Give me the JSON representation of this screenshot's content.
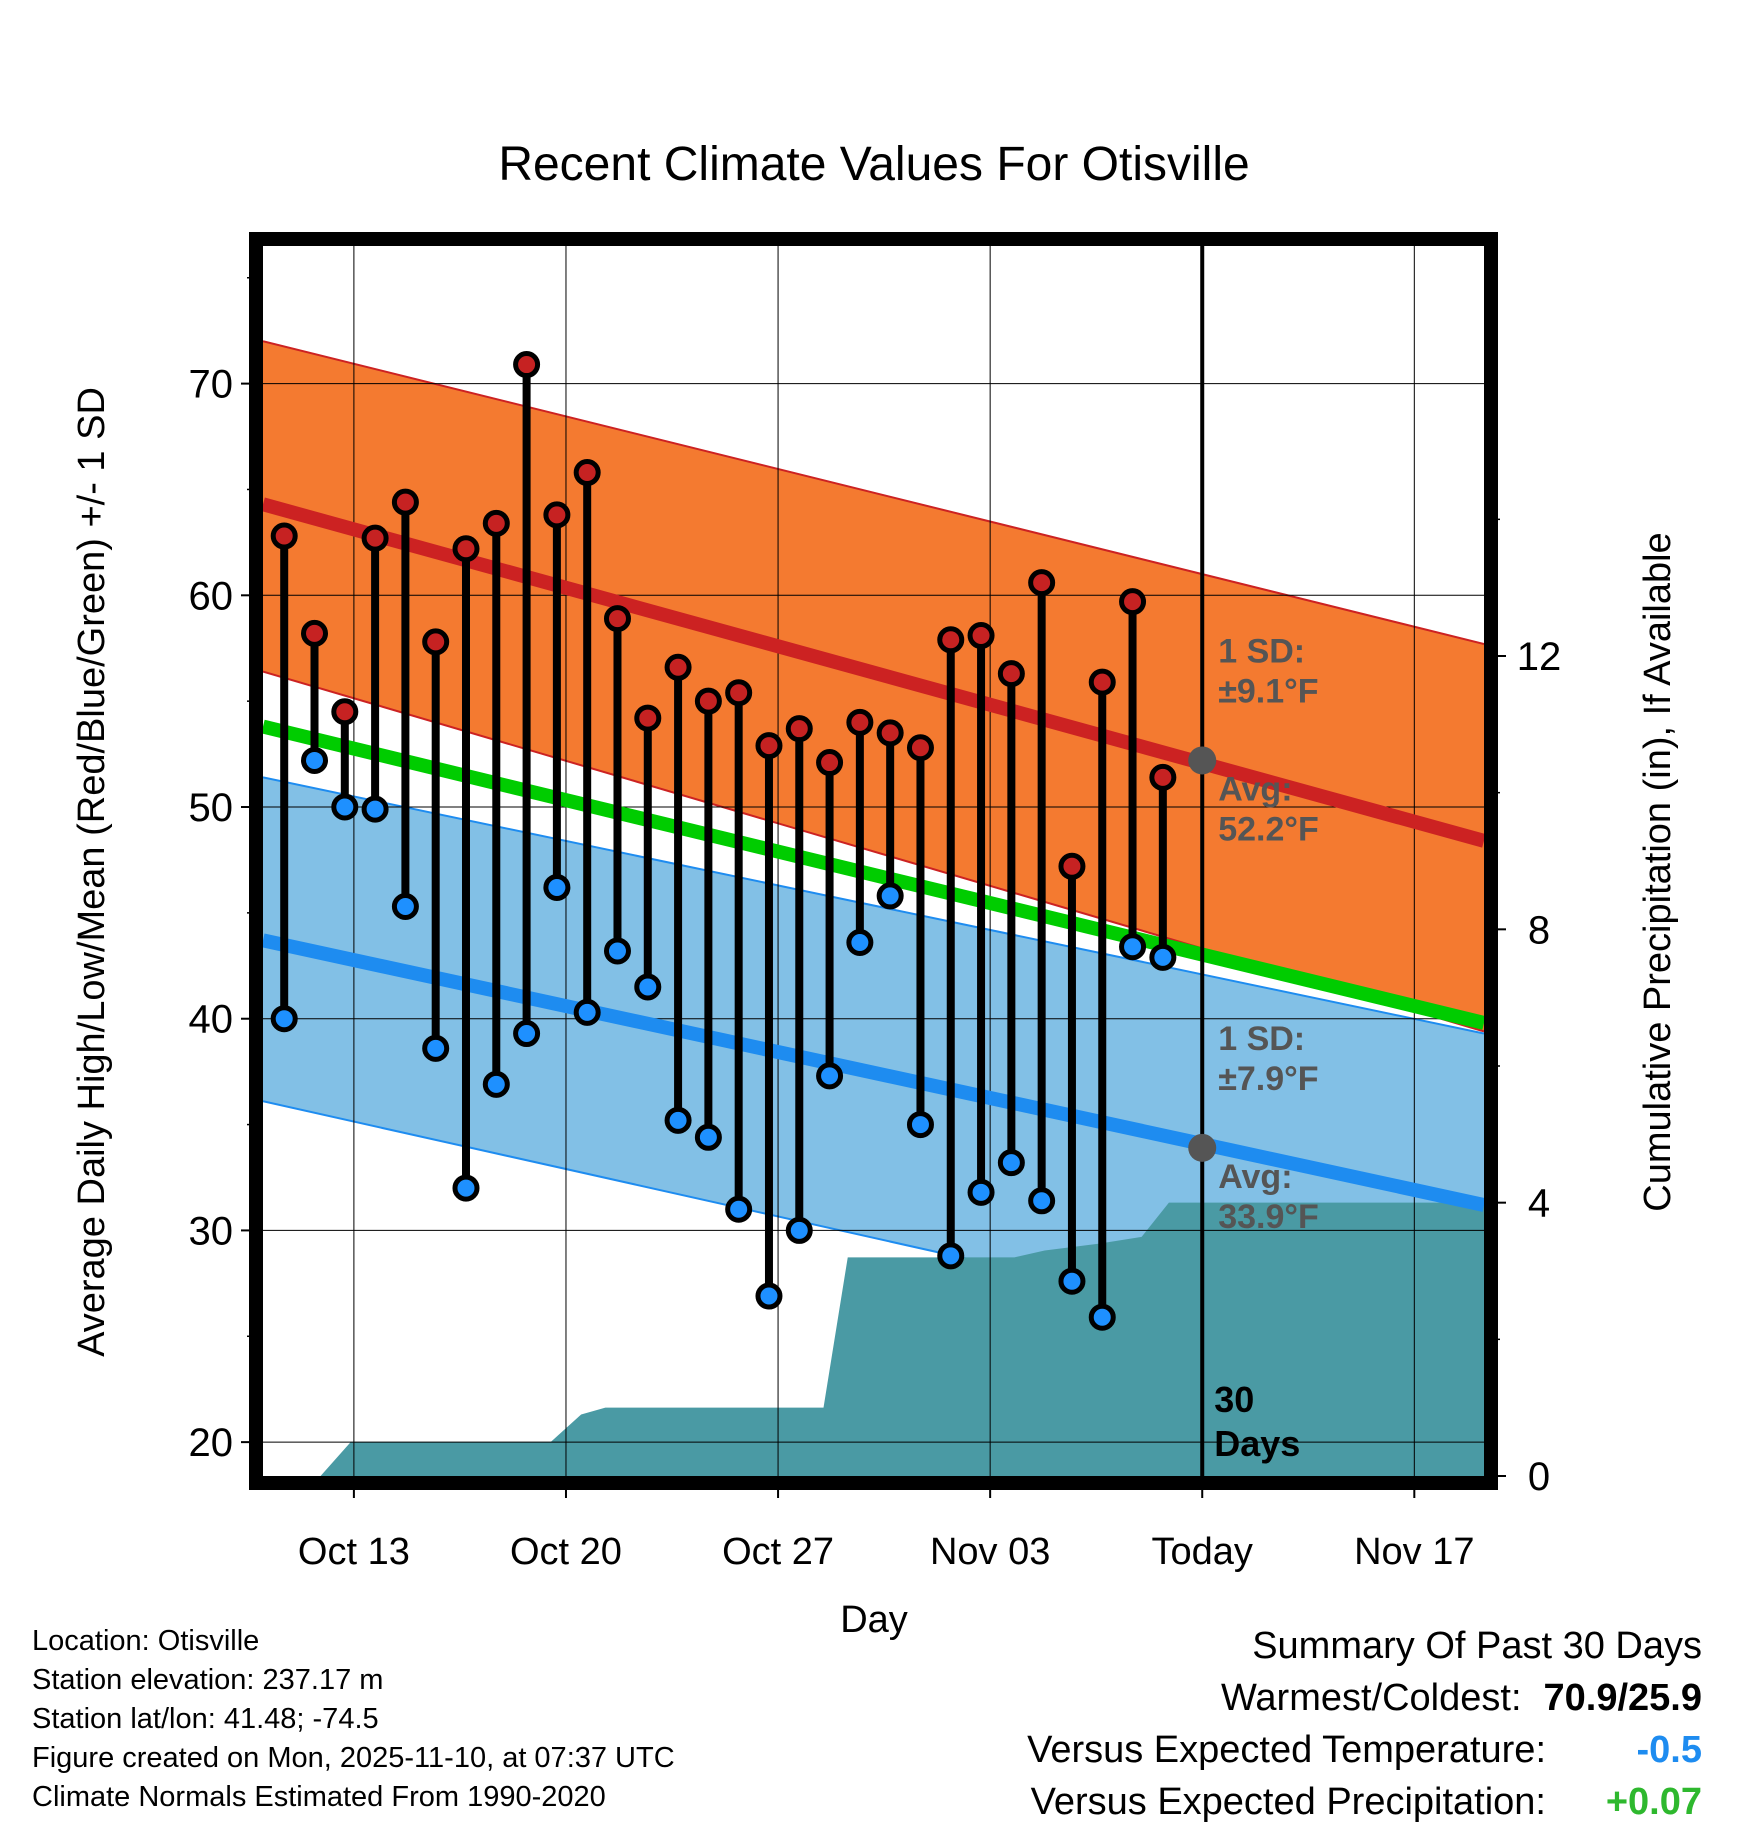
{
  "chart_data": {
    "type": "line",
    "title": "Recent Climate Values For Otisville",
    "xlabel": "Day",
    "ylabel": "Average Daily High/Low/Mean (Red/Blue/Green) +/- 1 SD",
    "y2label": "Cumulative Precipitation (in), If Available",
    "xlim": [
      0,
      40.3
    ],
    "ylim": [
      18.4,
      76.5
    ],
    "y2lim": [
      0,
      18
    ],
    "xticks": [
      {
        "x": 3,
        "label": "Oct 13"
      },
      {
        "x": 10,
        "label": "Oct 20"
      },
      {
        "x": 17,
        "label": "Oct 27"
      },
      {
        "x": 24,
        "label": "Nov 03"
      },
      {
        "x": 31,
        "label": "Today"
      },
      {
        "x": 38,
        "label": "Nov 17"
      }
    ],
    "yticks": [
      20,
      30,
      40,
      50,
      60,
      70
    ],
    "y2ticks": [
      0,
      4,
      8,
      12
    ],
    "today_x": 31,
    "day_x": [
      0.7,
      1.7,
      2.7,
      3.7,
      4.7,
      5.7,
      6.7,
      7.7,
      8.7,
      9.7,
      10.7,
      11.7,
      12.7,
      13.7,
      14.7,
      15.7,
      16.7,
      17.7,
      18.7,
      19.7,
      20.7,
      21.7,
      22.7,
      23.7,
      24.7,
      25.7,
      26.7,
      27.7,
      28.7,
      29.7
    ],
    "highs": [
      62.8,
      58.2,
      54.5,
      62.7,
      64.4,
      57.8,
      62.2,
      63.4,
      70.9,
      63.8,
      65.8,
      58.9,
      54.2,
      56.6,
      55.0,
      55.4,
      52.9,
      53.7,
      52.1,
      54.0,
      53.5,
      52.8,
      57.9,
      58.1,
      56.3,
      60.6,
      47.2,
      55.9,
      59.7,
      51.4
    ],
    "lows": [
      40.0,
      52.2,
      50.0,
      49.9,
      45.3,
      38.6,
      32.0,
      36.9,
      39.3,
      46.2,
      40.3,
      43.2,
      41.5,
      35.2,
      34.4,
      31.0,
      26.9,
      30.0,
      37.3,
      43.6,
      45.8,
      35.0,
      28.8,
      31.8,
      33.2,
      31.4,
      27.6,
      25.9,
      43.4,
      42.9
    ],
    "normal_high_band": {
      "x": [
        0,
        40.3
      ],
      "avg": [
        64.3,
        48.4
      ],
      "upper": [
        72.0,
        57.7
      ],
      "lower": [
        56.4,
        39.4
      ]
    },
    "normal_low_band": {
      "x": [
        0,
        40.3
      ],
      "avg": [
        43.7,
        31.2
      ],
      "upper": [
        51.4,
        39.3
      ],
      "lower": [
        36.1,
        23.2
      ]
    },
    "normal_mean": {
      "x": [
        0,
        40.3
      ],
      "values": [
        53.8,
        39.8
      ]
    },
    "precip_cumulative": {
      "x": [
        0,
        1.9,
        2.9,
        9.5,
        10.5,
        11.3,
        18.5,
        19.3,
        24.8,
        25.8,
        27.6,
        29.0,
        29.9,
        40.3
      ],
      "y": [
        0,
        0,
        0.5,
        0.5,
        0.9,
        1.0,
        1.0,
        3.2,
        3.2,
        3.3,
        3.4,
        3.5,
        4.0,
        4.0
      ]
    },
    "annotations": [
      {
        "x": 31,
        "y": 52.2,
        "lines": [
          "1 SD:",
          "±9.1°F"
        ],
        "avg_lines": [
          "Avg:",
          "52.2°F"
        ]
      },
      {
        "x": 31,
        "y": 33.9,
        "lines": [
          "1 SD:",
          "±7.9°F"
        ],
        "avg_lines": [
          "Avg:",
          "33.9°F"
        ]
      }
    ],
    "period_label": [
      "30",
      "Days"
    ],
    "colors": {
      "high_band": "#f47a30",
      "high_line": "#cc2222",
      "low_band": "#82c0e6",
      "low_line": "#1e8cf0",
      "mean_line": "#00cc00",
      "precip": "#4a9aa4",
      "high_marker": "#c62222",
      "low_marker": "#1e90ff",
      "annotation_text": "#555555",
      "avg_marker": "#555555"
    }
  },
  "info": {
    "location": "Location: Otisville",
    "elevation": "Station elevation: 237.17 m",
    "latlon": "Station lat/lon: 41.48; -74.5",
    "created": "Figure created on Mon, 2025-11-10, at 07:37 UTC",
    "normals": "Climate Normals Estimated From 1990-2020"
  },
  "summary": {
    "title": "Summary Of Past 30 Days",
    "warm_cold_label": "Warmest/Coldest:",
    "warm_cold_value": "70.9/25.9",
    "temp_label": "Versus Expected Temperature:",
    "temp_value": "-0.5",
    "temp_color": "#1e8cf0",
    "precip_label": "Versus Expected Precipitation:",
    "precip_value": "+0.07",
    "precip_color": "#2eb82e"
  }
}
